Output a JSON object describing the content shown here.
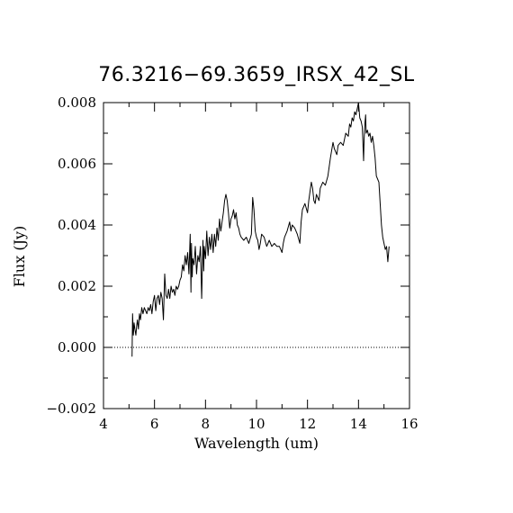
{
  "chart_data": {
    "type": "line",
    "title": "76.3216−69.3659_IRSX_42_SL",
    "xlabel": "Wavelength (um)",
    "ylabel": "Flux (Jy)",
    "xlim": [
      4,
      16
    ],
    "ylim": [
      -0.002,
      0.008
    ],
    "x_ticks": [
      4,
      6,
      8,
      10,
      12,
      14,
      16
    ],
    "x_tick_labels": [
      "4",
      "6",
      "8",
      "10",
      "12",
      "14",
      "16"
    ],
    "y_ticks": [
      -0.002,
      0.0,
      0.002,
      0.004,
      0.006,
      0.008
    ],
    "y_tick_labels": [
      "−0.002",
      "0.000",
      "0.002",
      "0.004",
      "0.006",
      "0.008"
    ],
    "zero_line": true,
    "grid": false,
    "colors": {
      "line": "#000000",
      "axes": "#000000",
      "background": "#ffffff"
    },
    "series": [
      {
        "x": [
          5.12,
          5.14,
          5.17,
          5.2,
          5.23,
          5.27,
          5.3,
          5.33,
          5.37,
          5.41,
          5.45,
          5.5,
          5.55,
          5.6,
          5.65,
          5.7,
          5.75,
          5.8,
          5.85,
          5.9,
          5.95,
          6.0,
          6.05,
          6.1,
          6.15,
          6.2,
          6.25,
          6.3,
          6.35,
          6.4,
          6.45,
          6.5,
          6.55,
          6.6,
          6.65,
          6.7,
          6.75,
          6.8,
          6.85,
          6.9,
          6.95,
          7.0,
          7.05,
          7.1,
          7.15,
          7.2,
          7.25,
          7.3,
          7.35,
          7.4,
          7.43,
          7.45,
          7.48,
          7.5,
          7.55,
          7.6,
          7.65,
          7.7,
          7.75,
          7.8,
          7.85,
          7.9,
          7.93,
          7.95,
          8.0,
          8.05,
          8.1,
          8.15,
          8.2,
          8.25,
          8.3,
          8.35,
          8.4,
          8.45,
          8.5,
          8.55,
          8.6,
          8.65,
          8.7,
          8.75,
          8.8,
          8.85,
          8.9,
          8.95,
          9.0,
          9.05,
          9.1,
          9.15,
          9.2,
          9.25,
          9.3,
          9.35,
          9.4,
          9.5,
          9.6,
          9.7,
          9.8,
          9.85,
          9.9,
          9.95,
          10.0,
          10.05,
          10.1,
          10.15,
          10.2,
          10.3,
          10.4,
          10.5,
          10.6,
          10.7,
          10.8,
          10.9,
          11.0,
          11.05,
          11.1,
          11.2,
          11.3,
          11.35,
          11.4,
          11.5,
          11.6,
          11.7,
          11.75,
          11.8,
          11.9,
          12.0,
          12.05,
          12.1,
          12.15,
          12.2,
          12.25,
          12.3,
          12.35,
          12.4,
          12.45,
          12.5,
          12.6,
          12.7,
          12.8,
          12.9,
          13.0,
          13.05,
          13.1,
          13.15,
          13.2,
          13.3,
          13.4,
          13.5,
          13.6,
          13.65,
          13.7,
          13.75,
          13.8,
          13.85,
          13.9,
          13.95,
          14.0,
          14.05,
          14.1,
          14.15,
          14.2,
          14.22,
          14.25,
          14.28,
          14.3,
          14.35,
          14.4,
          14.45,
          14.5,
          14.55,
          14.6,
          14.65,
          14.7,
          14.75,
          14.8,
          14.85,
          14.9,
          14.95,
          15.0,
          15.05,
          15.1,
          15.15,
          15.2
        ],
        "y": [
          -0.0003,
          0.0011,
          0.0004,
          0.0008,
          0.0006,
          0.0004,
          0.0007,
          0.0009,
          0.0006,
          0.0011,
          0.0009,
          0.0013,
          0.0011,
          0.0013,
          0.0012,
          0.0011,
          0.0013,
          0.0012,
          0.0014,
          0.0011,
          0.0015,
          0.0017,
          0.0012,
          0.0016,
          0.0017,
          0.0014,
          0.0018,
          0.0016,
          0.0009,
          0.0024,
          0.0017,
          0.0016,
          0.0019,
          0.0016,
          0.002,
          0.0018,
          0.0019,
          0.0017,
          0.002,
          0.0019,
          0.002,
          0.0022,
          0.0023,
          0.0027,
          0.0025,
          0.003,
          0.0027,
          0.0031,
          0.0024,
          0.0037,
          0.0018,
          0.0034,
          0.0023,
          0.0029,
          0.0027,
          0.0033,
          0.0024,
          0.003,
          0.0028,
          0.0033,
          0.0016,
          0.0035,
          0.0025,
          0.0033,
          0.0029,
          0.0038,
          0.003,
          0.0036,
          0.0032,
          0.0037,
          0.0031,
          0.0037,
          0.0033,
          0.0039,
          0.0035,
          0.0042,
          0.0038,
          0.0041,
          0.0044,
          0.0048,
          0.005,
          0.0048,
          0.0044,
          0.0039,
          0.0042,
          0.0043,
          0.0045,
          0.0042,
          0.0044,
          0.004,
          0.0039,
          0.0037,
          0.0036,
          0.0035,
          0.0036,
          0.0034,
          0.0037,
          0.0049,
          0.0045,
          0.0038,
          0.0036,
          0.0035,
          0.0032,
          0.0034,
          0.0037,
          0.0036,
          0.0033,
          0.0035,
          0.0033,
          0.0034,
          0.0033,
          0.0033,
          0.0031,
          0.0034,
          0.0036,
          0.0038,
          0.0041,
          0.0038,
          0.004,
          0.0039,
          0.0037,
          0.0034,
          0.0041,
          0.0045,
          0.0047,
          0.0044,
          0.0048,
          0.0051,
          0.0054,
          0.0052,
          0.0048,
          0.0047,
          0.005,
          0.0049,
          0.0048,
          0.0052,
          0.0054,
          0.0053,
          0.0056,
          0.0062,
          0.0067,
          0.0065,
          0.0064,
          0.0063,
          0.0066,
          0.0067,
          0.0066,
          0.007,
          0.0069,
          0.0073,
          0.0072,
          0.0075,
          0.0074,
          0.0077,
          0.0076,
          0.0078,
          0.008,
          0.0075,
          0.0074,
          0.0072,
          0.0061,
          0.0068,
          0.0073,
          0.0076,
          0.007,
          0.0071,
          0.0069,
          0.007,
          0.0067,
          0.0069,
          0.0066,
          0.0062,
          0.0056,
          0.0055,
          0.0054,
          0.0047,
          0.004,
          0.0036,
          0.0034,
          0.0032,
          0.0033,
          0.0028,
          0.0033
        ]
      }
    ]
  }
}
